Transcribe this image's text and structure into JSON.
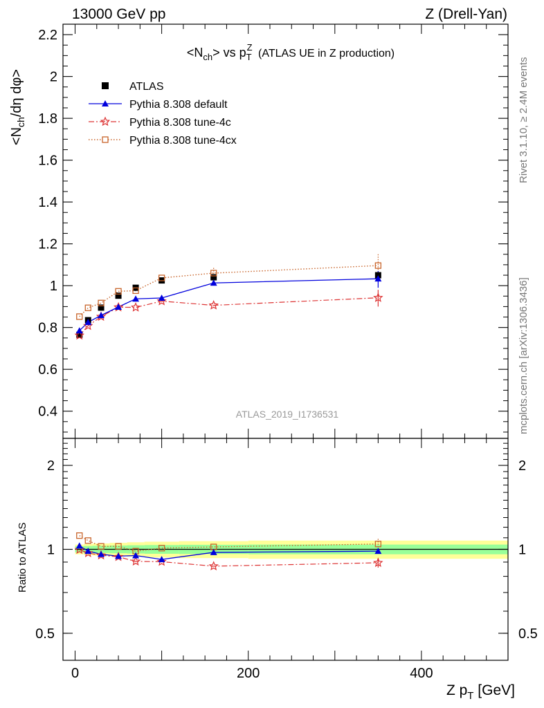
{
  "header": {
    "left": "13000 GeV pp",
    "right": "Z (Drell-Yan)"
  },
  "side": {
    "rivet": "Rivet 3.1.10, ≥ 2.4M events",
    "mcplots": "mcplots.cern.ch [arXiv:1306.3436]"
  },
  "watermark": "ATLAS_2019_I1736531",
  "colors": {
    "atlas": "#000000",
    "default": "#0000dd",
    "tune4c": "#dd3333",
    "tune4cx": "#c8642a",
    "band_inner": "#99ff99",
    "band_outer": "#ffff99"
  },
  "chart_data": [
    {
      "type": "scatter",
      "title": "<N_ch> vs p_T^Z (ATLAS UE in Z production)",
      "xlabel": "Z p_T [GeV]",
      "ylabel": "<N_ch/dη dφ>",
      "xlim": [
        -14,
        500
      ],
      "ylim": [
        0.27,
        2.25
      ],
      "yticks": [
        "0.4",
        "0.6",
        "0.8",
        "1",
        "1.2",
        "1.4",
        "1.6",
        "1.8",
        "2",
        "2.2"
      ],
      "legend_position": "top-left",
      "x": [
        5,
        15,
        30,
        50,
        70,
        100,
        160,
        350
      ],
      "series": [
        {
          "name": "ATLAS",
          "values": [
            0.765,
            0.835,
            0.895,
            0.952,
            0.99,
            1.025,
            1.04,
            1.05
          ]
        },
        {
          "name": "Pythia 8.308 default",
          "values": [
            0.785,
            0.825,
            0.858,
            0.898,
            0.937,
            0.941,
            1.013,
            1.033
          ]
        },
        {
          "name": "Pythia 8.308 tune-4c",
          "values": [
            0.762,
            0.808,
            0.852,
            0.897,
            0.896,
            0.926,
            0.906,
            0.942
          ]
        },
        {
          "name": "Pythia 8.308 tune-4cx",
          "values": [
            0.852,
            0.894,
            0.917,
            0.973,
            0.976,
            1.037,
            1.06,
            1.096
          ]
        }
      ]
    },
    {
      "type": "line",
      "ylabel": "Ratio to ATLAS",
      "xlabel": "Z p_T [GeV]",
      "xticks": [
        "0",
        "200",
        "400"
      ],
      "yticks": [
        "0.5",
        "1",
        "2"
      ],
      "ylim": [
        0.4,
        2.5
      ],
      "yscale": "log",
      "x": [
        5,
        15,
        30,
        50,
        70,
        100,
        160,
        350
      ],
      "series": [
        {
          "name": "Pythia 8.308 default",
          "values": [
            1.03,
            0.985,
            0.96,
            0.945,
            0.95,
            0.92,
            0.975,
            0.985
          ]
        },
        {
          "name": "Pythia 8.308 tune-4c",
          "values": [
            0.997,
            0.97,
            0.952,
            0.94,
            0.905,
            0.903,
            0.87,
            0.895
          ]
        },
        {
          "name": "Pythia 8.308 tune-4cx",
          "values": [
            1.12,
            1.075,
            1.025,
            1.025,
            0.985,
            1.01,
            1.02,
            1.045
          ]
        }
      ]
    }
  ]
}
